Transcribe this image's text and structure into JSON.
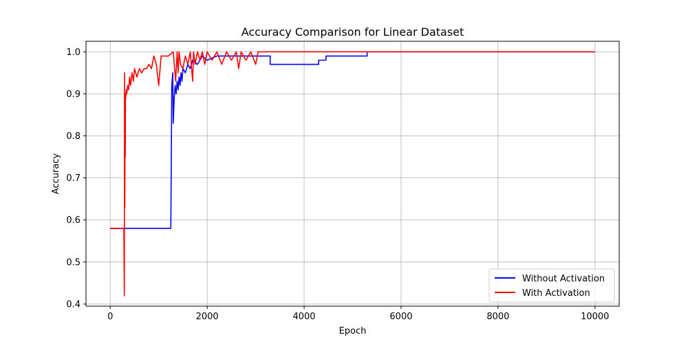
{
  "chart_data": {
    "type": "line",
    "title": "Accuracy Comparison for Linear Dataset",
    "xlabel": "Epoch",
    "ylabel": "Accuracy",
    "xlim": [
      -500,
      10500
    ],
    "ylim": [
      0.395,
      1.025
    ],
    "xticks": [
      0,
      2000,
      4000,
      6000,
      8000,
      10000
    ],
    "yticks": [
      0.4,
      0.5,
      0.6,
      0.7,
      0.8,
      0.9,
      1.0
    ],
    "xtick_labels": [
      "0",
      "2000",
      "4000",
      "6000",
      "8000",
      "10000"
    ],
    "ytick_labels": [
      "0.4",
      "0.5",
      "0.6",
      "0.7",
      "0.8",
      "0.9",
      "1.0"
    ],
    "grid": true,
    "legend_position": "bottom-right",
    "series": [
      {
        "name": "Without Activation",
        "color": "#0000ff",
        "x": [
          0,
          1250,
          1270,
          1290,
          1300,
          1320,
          1340,
          1360,
          1380,
          1400,
          1420,
          1440,
          1460,
          1480,
          1500,
          1550,
          1600,
          1650,
          1700,
          1800,
          1900,
          2000,
          2200,
          2500,
          3000,
          3300,
          3300,
          3500,
          3800,
          4000,
          4300,
          4300,
          4450,
          4450,
          5300,
          5300,
          10000
        ],
        "y": [
          0.58,
          0.58,
          0.92,
          0.95,
          0.83,
          0.89,
          0.92,
          0.9,
          0.93,
          0.91,
          0.94,
          0.92,
          0.95,
          0.93,
          0.96,
          0.95,
          0.97,
          0.96,
          0.98,
          0.97,
          0.99,
          0.98,
          0.99,
          0.99,
          0.99,
          0.99,
          0.97,
          0.97,
          0.97,
          0.97,
          0.97,
          0.98,
          0.98,
          0.99,
          0.99,
          1.0,
          1.0
        ]
      },
      {
        "name": "With Activation",
        "color": "#ff0000",
        "x": [
          0,
          280,
          290,
          295,
          300,
          305,
          310,
          315,
          320,
          330,
          340,
          360,
          380,
          400,
          420,
          450,
          480,
          500,
          550,
          600,
          650,
          700,
          750,
          800,
          850,
          900,
          950,
          1000,
          1050,
          1100,
          1200,
          1300,
          1350,
          1380,
          1400,
          1420,
          1450,
          1500,
          1550,
          1600,
          1650,
          1700,
          1720,
          1750,
          1800,
          1850,
          1900,
          1950,
          2000,
          2100,
          2200,
          2300,
          2400,
          2500,
          2600,
          2650,
          2700,
          2800,
          2900,
          3000,
          3050,
          10000
        ],
        "y": [
          0.58,
          0.58,
          0.42,
          0.95,
          0.63,
          0.88,
          0.75,
          0.9,
          0.89,
          0.91,
          0.9,
          0.92,
          0.91,
          0.94,
          0.92,
          0.95,
          0.93,
          0.96,
          0.94,
          0.96,
          0.95,
          0.96,
          0.96,
          0.97,
          0.96,
          0.99,
          0.97,
          0.92,
          0.99,
          0.99,
          0.99,
          1.0,
          0.93,
          1.0,
          0.95,
          1.0,
          0.97,
          0.96,
          0.99,
          0.97,
          1.0,
          0.93,
          1.0,
          0.97,
          1.0,
          0.98,
          1.0,
          0.97,
          1.0,
          0.98,
          1.0,
          0.97,
          1.0,
          0.98,
          1.0,
          0.96,
          1.0,
          0.98,
          1.0,
          0.97,
          1.0,
          1.0
        ]
      }
    ]
  }
}
